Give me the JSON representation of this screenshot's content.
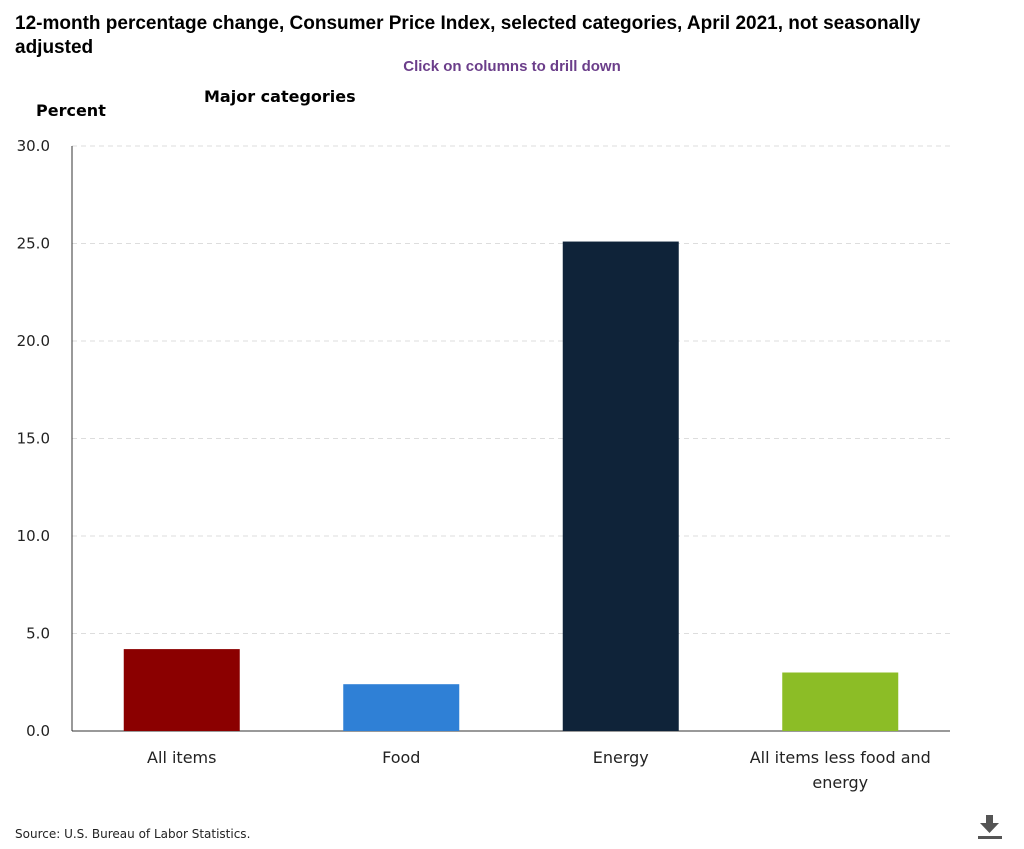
{
  "chart_data": {
    "type": "bar",
    "title": "12-month percentage change, Consumer Price Index, selected categories, April 2021, not seasonally adjusted",
    "subtitle": "Click on columns to drill down",
    "drilldown_label": "Major categories",
    "ylabel": "Percent",
    "xlabel": "",
    "ylim": [
      0,
      30
    ],
    "yticks": [
      "0.0",
      "5.0",
      "10.0",
      "15.0",
      "20.0",
      "25.0",
      "30.0"
    ],
    "ytick_values": [
      0,
      5,
      10,
      15,
      20,
      25,
      30
    ],
    "categories": [
      "All items",
      "Food",
      "Energy",
      "All items less food and energy"
    ],
    "category_lines": [
      [
        "All items"
      ],
      [
        "Food"
      ],
      [
        "Energy"
      ],
      [
        "All items less food and",
        "energy"
      ]
    ],
    "values": [
      4.2,
      2.4,
      25.1,
      3.0
    ],
    "colors": [
      "#8b0000",
      "#2f80d6",
      "#0f2339",
      "#8cbd26"
    ],
    "grid": true,
    "legend": "none"
  },
  "source_note": "Source: U.S. Bureau of Labor Statistics.",
  "download_icon": "download-icon"
}
